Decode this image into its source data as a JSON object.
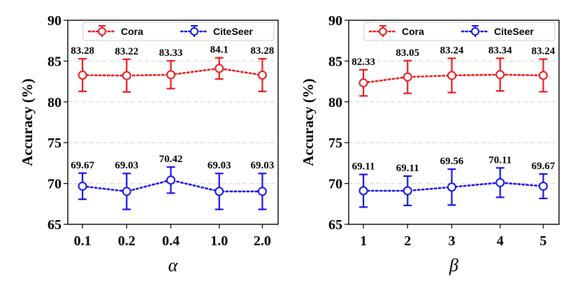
{
  "chart_data": [
    {
      "type": "line",
      "xlabel": "α",
      "ylabel": "Accuracy (%)",
      "categories": [
        "0.1",
        "0.2",
        "0.4",
        "1.0",
        "2.0"
      ],
      "ylim": [
        65,
        90
      ],
      "yticks": [
        65,
        70,
        75,
        80,
        85,
        90
      ],
      "grid": "horizontal-dashed",
      "legend_position": "top",
      "series": [
        {
          "name": "Cora",
          "color": "#e8191c",
          "values": [
            83.28,
            83.22,
            83.33,
            84.1,
            83.28
          ],
          "labels": [
            "83.28",
            "83.22",
            "83.33",
            "84.1",
            "83.28"
          ],
          "err": [
            2.0,
            2.0,
            1.7,
            1.3,
            2.0
          ]
        },
        {
          "name": "CiteSeer",
          "color": "#1414e6",
          "values": [
            69.67,
            69.03,
            70.42,
            69.03,
            69.03
          ],
          "labels": [
            "69.67",
            "69.03",
            "70.42",
            "69.03",
            "69.03"
          ],
          "err": [
            1.6,
            2.2,
            1.6,
            2.2,
            2.2
          ]
        }
      ]
    },
    {
      "type": "line",
      "xlabel": "β",
      "ylabel": "Accuracy (%)",
      "categories": [
        "1",
        "2",
        "3",
        "4",
        "5"
      ],
      "ylim": [
        65,
        90
      ],
      "yticks": [
        65,
        70,
        75,
        80,
        85,
        90
      ],
      "grid": "horizontal-dashed",
      "legend_position": "top",
      "series": [
        {
          "name": "Cora",
          "color": "#e8191c",
          "values": [
            82.33,
            83.05,
            83.24,
            83.34,
            83.24
          ],
          "labels": [
            "82.33",
            "83.05",
            "83.24",
            "83.34",
            "83.24"
          ],
          "err": [
            1.6,
            2.0,
            2.1,
            2.0,
            2.0
          ]
        },
        {
          "name": "CiteSeer",
          "color": "#1414e6",
          "values": [
            69.11,
            69.11,
            69.56,
            70.11,
            69.67
          ],
          "labels": [
            "69.11",
            "69.11",
            "69.56",
            "70.11",
            "69.67"
          ],
          "err": [
            2.0,
            1.8,
            2.2,
            1.8,
            1.5
          ]
        }
      ]
    }
  ]
}
